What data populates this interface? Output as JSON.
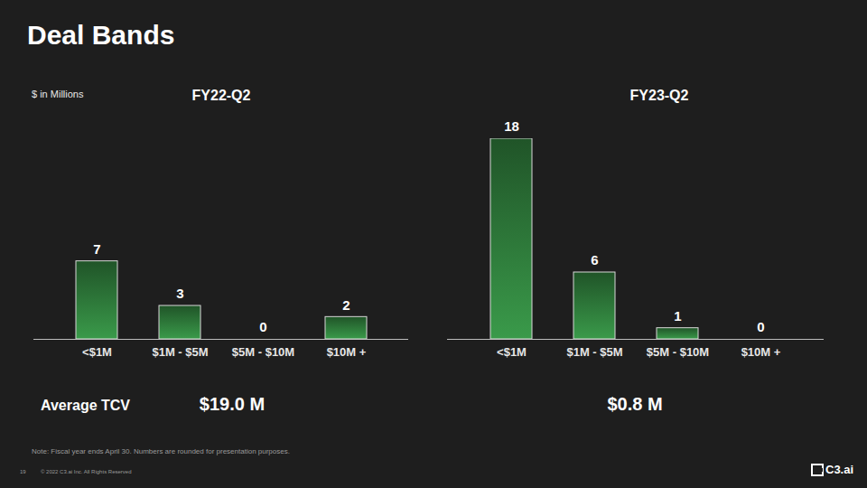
{
  "title": "Deal Bands",
  "unit_note": "$ in Millions",
  "chart_data": [
    {
      "type": "bar",
      "title": "FY22-Q2",
      "categories": [
        "<$1M",
        "$1M - $5M",
        "$5M - $10M",
        "$10M +"
      ],
      "values": [
        7,
        3,
        0,
        2
      ],
      "color": "#3a9a4a",
      "ylim": [
        0,
        18
      ],
      "data_labels": true,
      "tick_labels": "x",
      "grid": false
    },
    {
      "type": "bar",
      "title": "FY23-Q2",
      "categories": [
        "<$1M",
        "$1M - $5M",
        "$5M - $10M",
        "$10M +"
      ],
      "values": [
        18,
        6,
        1,
        0
      ],
      "color": "#3a9a4a",
      "ylim": [
        0,
        18
      ],
      "data_labels": true,
      "tick_labels": "x",
      "grid": false
    }
  ],
  "average_tcv": {
    "label": "Average TCV",
    "values": [
      "$19.0 M",
      "$0.8 M"
    ]
  },
  "footnote": "Note: Fiscal year ends April 30. Numbers are rounded for presentation purposes.",
  "page_number": "19",
  "copyright": "© 2022 C3.ai Inc. All Rights Reserved",
  "logo": "C3.ai"
}
